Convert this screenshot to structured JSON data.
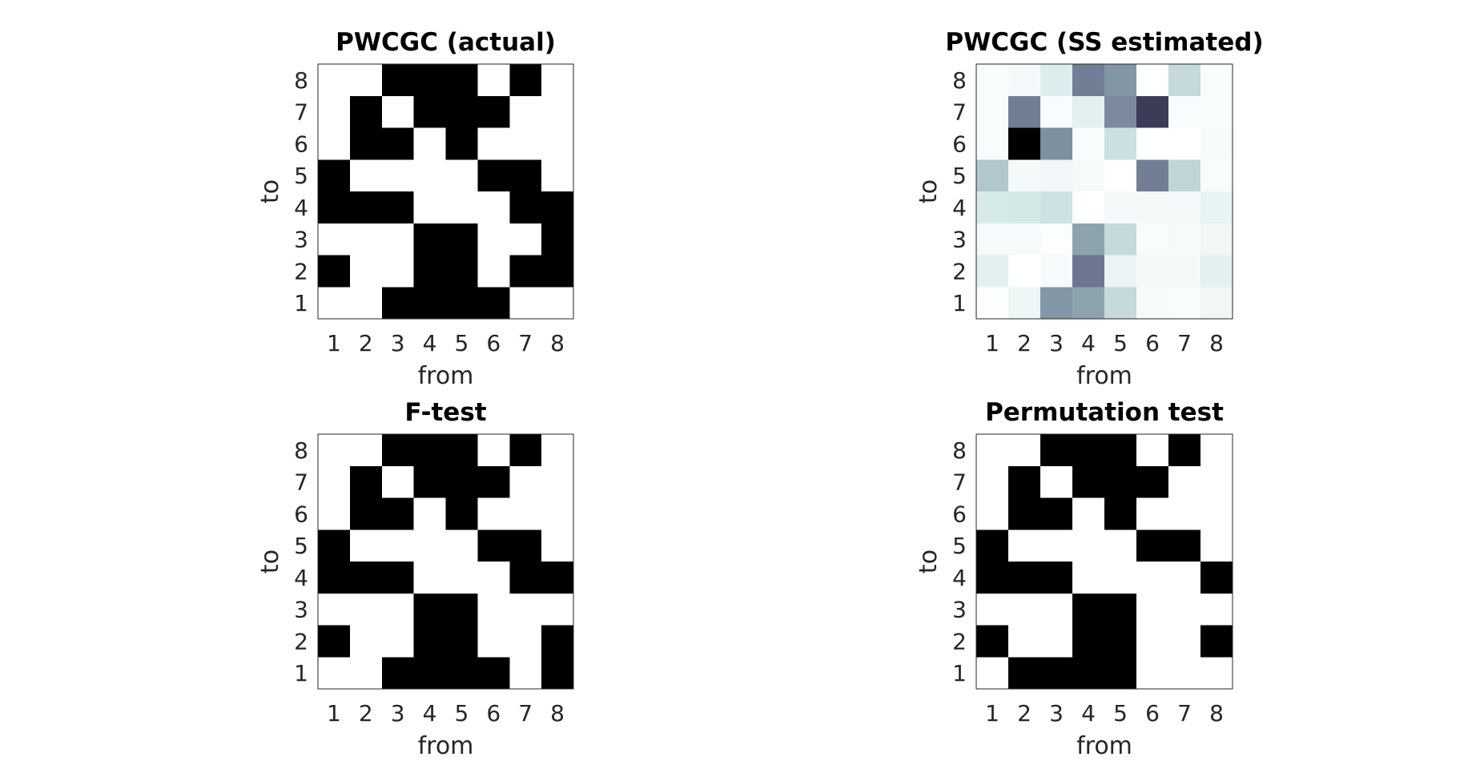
{
  "chart_data": [
    {
      "type": "heatmap",
      "title": "PWCGC (actual)",
      "xlabel": "from",
      "ylabel": "to",
      "x_ticks": [
        "1",
        "2",
        "3",
        "4",
        "5",
        "6",
        "7",
        "8"
      ],
      "y_ticks": [
        "1",
        "2",
        "3",
        "4",
        "5",
        "6",
        "7",
        "8"
      ],
      "colormap": "binary (1 = black, 0 = white)",
      "rows_from_top_to_8_down_to_1": [
        [
          0,
          0,
          1,
          1,
          1,
          0,
          1,
          0
        ],
        [
          0,
          1,
          0,
          1,
          1,
          1,
          0,
          0
        ],
        [
          0,
          1,
          1,
          0,
          1,
          0,
          0,
          0
        ],
        [
          1,
          0,
          0,
          0,
          0,
          1,
          1,
          0
        ],
        [
          1,
          1,
          1,
          0,
          0,
          0,
          1,
          1
        ],
        [
          0,
          0,
          0,
          1,
          1,
          0,
          0,
          1
        ],
        [
          1,
          0,
          0,
          1,
          1,
          0,
          1,
          1
        ],
        [
          0,
          0,
          1,
          1,
          1,
          1,
          0,
          0
        ]
      ]
    },
    {
      "type": "heatmap",
      "title": "PWCGC (SS estimated)",
      "xlabel": "from",
      "ylabel": "to",
      "x_ticks": [
        "1",
        "2",
        "3",
        "4",
        "5",
        "6",
        "7",
        "8"
      ],
      "y_ticks": [
        "1",
        "2",
        "3",
        "4",
        "5",
        "6",
        "7",
        "8"
      ],
      "colormap": "bone (inverted: 0 = white, 1 = black)",
      "rows_from_top_to_8_down_to_1": [
        [
          0.02,
          0.04,
          0.12,
          0.55,
          0.45,
          0.0,
          0.2,
          0.02
        ],
        [
          0.02,
          0.55,
          0.02,
          0.1,
          0.5,
          0.8,
          0.02,
          0.02
        ],
        [
          0.02,
          1.0,
          0.48,
          0.02,
          0.18,
          0.0,
          0.0,
          0.03
        ],
        [
          0.27,
          0.04,
          0.05,
          0.03,
          0.0,
          0.55,
          0.22,
          0.02
        ],
        [
          0.14,
          0.15,
          0.17,
          0.0,
          0.04,
          0.04,
          0.04,
          0.08
        ],
        [
          0.03,
          0.03,
          0.01,
          0.4,
          0.2,
          0.02,
          0.03,
          0.05
        ],
        [
          0.1,
          0.0,
          0.03,
          0.58,
          0.07,
          0.04,
          0.04,
          0.1
        ],
        [
          0.01,
          0.06,
          0.45,
          0.4,
          0.2,
          0.03,
          0.02,
          0.05
        ]
      ]
    },
    {
      "type": "heatmap",
      "title": "F-test",
      "xlabel": "from",
      "ylabel": "to",
      "x_ticks": [
        "1",
        "2",
        "3",
        "4",
        "5",
        "6",
        "7",
        "8"
      ],
      "y_ticks": [
        "1",
        "2",
        "3",
        "4",
        "5",
        "6",
        "7",
        "8"
      ],
      "colormap": "binary (1 = black, 0 = white)",
      "rows_from_top_to_8_down_to_1": [
        [
          0,
          0,
          1,
          1,
          1,
          0,
          1,
          0
        ],
        [
          0,
          1,
          0,
          1,
          1,
          1,
          0,
          0
        ],
        [
          0,
          1,
          1,
          0,
          1,
          0,
          0,
          0
        ],
        [
          1,
          0,
          0,
          0,
          0,
          1,
          1,
          0
        ],
        [
          1,
          1,
          1,
          0,
          0,
          0,
          1,
          1
        ],
        [
          0,
          0,
          0,
          1,
          1,
          0,
          0,
          0
        ],
        [
          1,
          0,
          0,
          1,
          1,
          0,
          0,
          1
        ],
        [
          0,
          0,
          1,
          1,
          1,
          1,
          0,
          1
        ]
      ]
    },
    {
      "type": "heatmap",
      "title": "Permutation test",
      "xlabel": "from",
      "ylabel": "to",
      "x_ticks": [
        "1",
        "2",
        "3",
        "4",
        "5",
        "6",
        "7",
        "8"
      ],
      "y_ticks": [
        "1",
        "2",
        "3",
        "4",
        "5",
        "6",
        "7",
        "8"
      ],
      "colormap": "binary (1 = black, 0 = white)",
      "rows_from_top_to_8_down_to_1": [
        [
          0,
          0,
          1,
          1,
          1,
          0,
          1,
          0
        ],
        [
          0,
          1,
          0,
          1,
          1,
          1,
          0,
          0
        ],
        [
          0,
          1,
          1,
          0,
          1,
          0,
          0,
          0
        ],
        [
          1,
          0,
          0,
          0,
          0,
          1,
          1,
          0
        ],
        [
          1,
          1,
          1,
          0,
          0,
          0,
          0,
          1
        ],
        [
          0,
          0,
          0,
          1,
          1,
          0,
          0,
          0
        ],
        [
          1,
          0,
          0,
          1,
          1,
          0,
          0,
          1
        ],
        [
          0,
          1,
          1,
          1,
          1,
          0,
          0,
          0
        ]
      ]
    }
  ]
}
